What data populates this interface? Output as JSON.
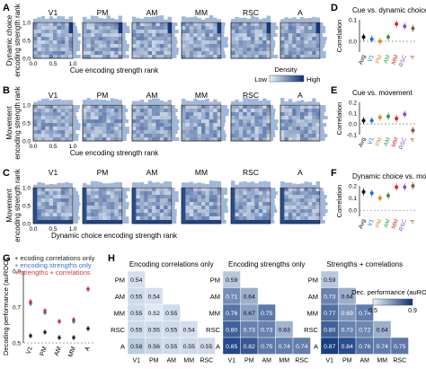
{
  "panel_letters": [
    "A",
    "B",
    "C",
    "D",
    "E",
    "F",
    "G",
    "H"
  ],
  "areas": [
    "V1",
    "PM",
    "AM",
    "MM",
    "RSC",
    "A"
  ],
  "scatter_rows": [
    {
      "letter": "A",
      "ylabel_lines": [
        "Dynamic choice",
        "encoding strength rank"
      ],
      "xlabel": "Cue encoding strength rank"
    },
    {
      "letter": "B",
      "ylabel_lines": [
        "Movement",
        "encoding strength rank"
      ],
      "xlabel": "Cue encoding strength rank"
    },
    {
      "letter": "C",
      "ylabel_lines": [
        "Movement",
        "encoding strength rank"
      ],
      "xlabel": "Dynamic choice encoding strength rank"
    }
  ],
  "ticks_01": [
    "0.0",
    "0.5",
    "1.0"
  ],
  "density_legend": {
    "title": "Density",
    "low": "Low",
    "high": "High"
  },
  "chart_data": [
    {
      "type": "scatter",
      "title": "Cue vs. dynamic choice",
      "ylabel": "Correlation",
      "categories": [
        "Avg",
        "V1",
        "PM",
        "AM",
        "MM",
        "RSC",
        "A"
      ],
      "values": [
        0.02,
        0.01,
        0.0,
        0.02,
        0.08,
        0.07,
        0.06
      ],
      "ylim": [
        -0.05,
        0.1
      ],
      "yticks": [
        "0.1",
        "0.0"
      ],
      "colors": [
        "#111111",
        "#1f6fd1",
        "#e08a1e",
        "#2e9e3a",
        "#d62728",
        "#8e4fc2",
        "#8c564b"
      ]
    },
    {
      "type": "scatter",
      "title": "Cue vs. movement",
      "ylabel": "Correlation",
      "categories": [
        "Avg",
        "V1",
        "PM",
        "AM",
        "MM",
        "RSC",
        "A"
      ],
      "values": [
        0.03,
        0.03,
        0.06,
        0.07,
        0.05,
        0.09,
        -0.06
      ],
      "ylim": [
        -0.1,
        0.2
      ],
      "yticks": [
        "0.2",
        "0.1",
        "0.0",
        "-0.1"
      ],
      "colors": [
        "#111111",
        "#1f6fd1",
        "#e08a1e",
        "#2e9e3a",
        "#d62728",
        "#8e4fc2",
        "#8c564b"
      ]
    },
    {
      "type": "scatter",
      "title": "Dynamic choice vs. movement",
      "ylabel": "Correlation",
      "categories": [
        "Avg",
        "V1",
        "PM",
        "AM",
        "MM",
        "RSC",
        "A"
      ],
      "values": [
        0.15,
        0.14,
        0.1,
        0.12,
        0.19,
        0.19,
        0.2
      ],
      "ylim": [
        -0.05,
        0.2
      ],
      "yticks": [
        "0.2",
        "0.1",
        "0.0"
      ],
      "colors": [
        "#111111",
        "#1f6fd1",
        "#e08a1e",
        "#2e9e3a",
        "#d62728",
        "#8e4fc2",
        "#8c564b"
      ]
    },
    {
      "type": "scatter",
      "ylabel": "Decoding performance (auROC)",
      "categories": [
        "V1",
        "PM",
        "AM",
        "MM",
        "A"
      ],
      "legend": [
        "+ ecoding correlations only",
        "+ encoding strengths only",
        "+ strengths + correlations"
      ],
      "series": [
        {
          "name": "+ ecoding correlations only",
          "color": "#222222",
          "values": [
            0.54,
            0.56,
            0.53,
            0.53,
            0.58
          ]
        },
        {
          "name": "+ encoding strengths only",
          "color": "#3a6fd8",
          "values": [
            0.72,
            0.67,
            0.62,
            0.62,
            0.8
          ]
        },
        {
          "name": "+ strengths + correlations",
          "color": "#d13b3b",
          "values": [
            0.73,
            0.68,
            0.62,
            0.63,
            0.8
          ]
        }
      ],
      "ylim": [
        0.5,
        0.9
      ],
      "yticks": [
        "0.9",
        "0.7",
        "0.5"
      ]
    },
    {
      "type": "heatmap",
      "title": "Encoding correlations only",
      "rows": [
        "PM",
        "AM",
        "MM",
        "RSC",
        "A"
      ],
      "cols": [
        "V1",
        "PM",
        "AM",
        "MM",
        "RSC"
      ],
      "values": [
        [
          0.54
        ],
        [
          0.55,
          0.54
        ],
        [
          0.55,
          0.52,
          0.55
        ],
        [
          0.55,
          0.55,
          0.55,
          0.54
        ],
        [
          0.58,
          0.56,
          0.55,
          0.55,
          0.55
        ]
      ]
    },
    {
      "type": "heatmap",
      "title": "Encoding strengths only",
      "rows": [
        "PM",
        "AM",
        "MM",
        "RSC",
        "A"
      ],
      "cols": [
        "V1",
        "PM",
        "AM",
        "MM",
        "RSC"
      ],
      "values": [
        [
          0.59
        ],
        [
          0.71,
          0.64
        ],
        [
          0.76,
          0.67,
          0.75
        ],
        [
          0.8,
          0.73,
          0.73,
          0.63
        ],
        [
          0.85,
          0.82,
          0.75,
          0.74,
          0.74
        ]
      ]
    },
    {
      "type": "heatmap",
      "title": "Strengths + correlations",
      "rows": [
        "PM",
        "AM",
        "MM",
        "RSC",
        "A"
      ],
      "cols": [
        "V1",
        "PM",
        "AM",
        "MM",
        "RSC"
      ],
      "values": [
        [
          0.59
        ],
        [
          0.73,
          0.64
        ],
        [
          0.77,
          0.69,
          0.74
        ],
        [
          0.8,
          0.73,
          0.72,
          0.64
        ],
        [
          0.87,
          0.84,
          0.76,
          0.74,
          0.75
        ]
      ],
      "colorbar": {
        "title": "Dec. performance (auROC)",
        "min": 0.5,
        "max": 0.9,
        "ticks": [
          "0.5",
          "0.9"
        ]
      }
    }
  ]
}
